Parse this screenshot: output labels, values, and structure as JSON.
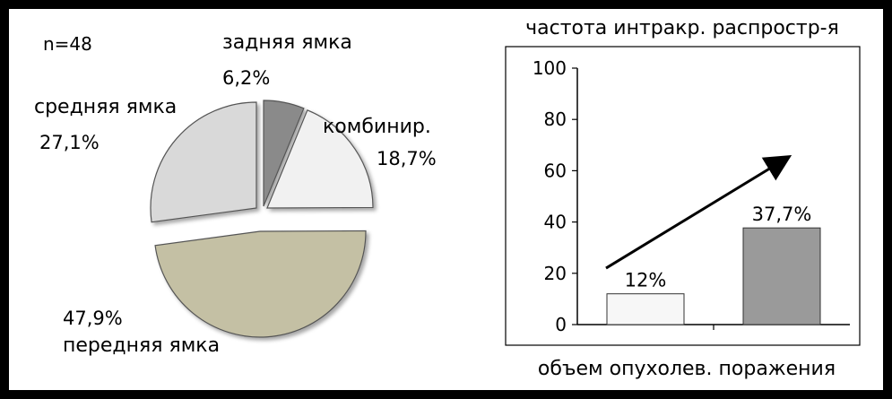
{
  "chart_data": [
    {
      "type": "pie",
      "annotation": "n=48",
      "slices": [
        {
          "label": "задняя ямка",
          "value": 6.2,
          "value_label": "6,2%",
          "color": "#8a8a8a",
          "exploded": false
        },
        {
          "label": "комбинир.",
          "value": 18.7,
          "value_label": "18,7%",
          "color": "#f1f1f1",
          "exploded": false
        },
        {
          "label": "передняя ямка",
          "value": 47.9,
          "value_label": "47,9%",
          "color": "#c4c0a4",
          "exploded": true
        },
        {
          "label": "средняя ямка",
          "value": 27.1,
          "value_label": "27,1%",
          "color": "#d9d9d9",
          "exploded": false
        }
      ]
    },
    {
      "type": "bar",
      "title": "частота интракр. распростр-я",
      "xlabel": "объем опухолев. поражения",
      "ylabel": "",
      "ylim": [
        0,
        100
      ],
      "yticks": [
        0,
        20,
        40,
        60,
        80,
        100
      ],
      "values": [
        12,
        37.7
      ],
      "value_labels": [
        "12%",
        "37,7%"
      ],
      "bar_colors": [
        "#f7f7f7",
        "#9a9a9a"
      ],
      "trend_arrow": true,
      "grid": false
    }
  ]
}
